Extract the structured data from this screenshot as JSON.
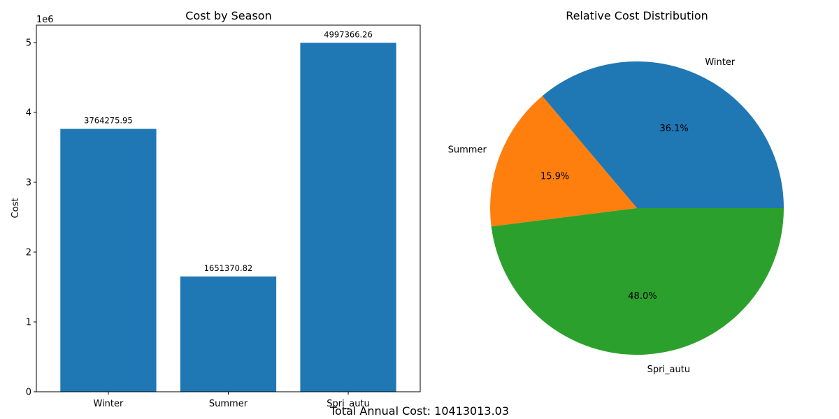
{
  "footer": {
    "total_text": "Total Annual Cost: 10413013.03"
  },
  "chart_data": [
    {
      "type": "bar",
      "title": "Cost by Season",
      "xlabel": "",
      "ylabel": "Cost",
      "y_offset_label": "1e6",
      "y_scale": 1000000,
      "categories": [
        "Winter",
        "Summer",
        "Spri_autu"
      ],
      "values": [
        3764275.95,
        1651370.82,
        4997366.26
      ],
      "data_labels": [
        "3764275.95",
        "1651370.82",
        "4997366.26"
      ],
      "ylim": [
        0,
        5250000
      ],
      "yticks": [
        0,
        1,
        2,
        3,
        4,
        5
      ],
      "color": "#1f77b4",
      "grid": false
    },
    {
      "type": "pie",
      "title": "Relative Cost Distribution",
      "labels": [
        "Winter",
        "Summer",
        "Spri_autu"
      ],
      "values": [
        3764275.95,
        1651370.82,
        4997366.26
      ],
      "percent_labels": [
        "36.1%",
        "15.9%",
        "48.0%"
      ],
      "colors": [
        "#1f77b4",
        "#ff7f0e",
        "#2ca02c"
      ],
      "start_angle": 0
    }
  ]
}
